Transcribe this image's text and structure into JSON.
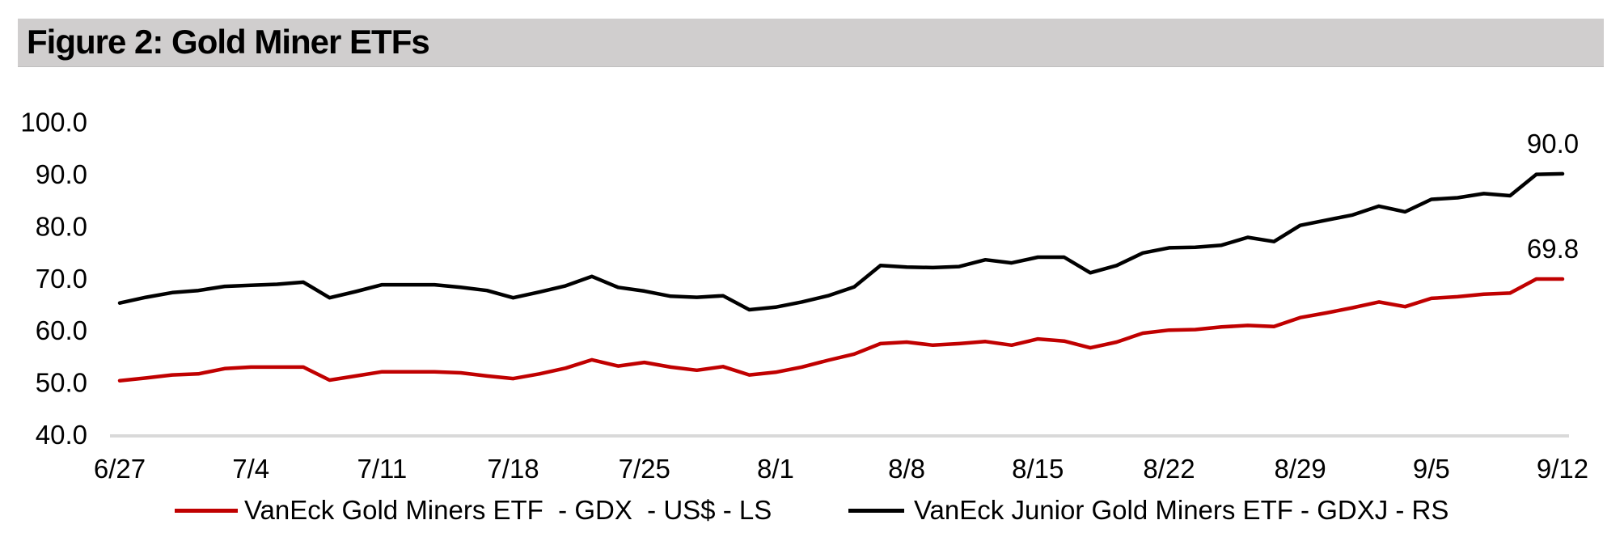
{
  "title": "Figure 2: Gold Miner ETFs",
  "colors": {
    "title_bar_bg": "#d0cece",
    "axis_line": "#d9d9d9",
    "gdx_line": "#C00000",
    "gdxj_line": "#000000",
    "background": "#ffffff"
  },
  "chart_data": {
    "type": "line",
    "title": "Figure 2: Gold Miner ETFs",
    "grid": false,
    "legend_position": "bottom",
    "ylim": [
      40,
      100
    ],
    "y_tick_labels": [
      "100.0",
      "90.0",
      "80.0",
      "70.0",
      "60.0",
      "50.0",
      "40.0"
    ],
    "x_tick_labels": [
      "6/27",
      "7/4",
      "7/11",
      "7/18",
      "7/25",
      "8/1",
      "8/8",
      "8/15",
      "8/22",
      "8/29",
      "9/5",
      "9/12"
    ],
    "points_per_label": 5,
    "series": [
      {
        "name": "VanEck Gold Miners ETF  - GDX  - US$ - LS",
        "color": "#C00000",
        "side": "LS",
        "end_label": "69.8",
        "values": [
          50.3,
          50.8,
          51.4,
          51.6,
          52.6,
          52.9,
          52.9,
          52.9,
          50.4,
          51.2,
          52.0,
          52.0,
          52.0,
          51.8,
          51.2,
          50.7,
          51.6,
          52.7,
          54.3,
          53.1,
          53.8,
          52.9,
          52.3,
          53.0,
          51.4,
          51.9,
          52.9,
          54.2,
          55.4,
          57.4,
          57.7,
          57.1,
          57.4,
          57.8,
          57.1,
          58.3,
          57.9,
          56.6,
          57.7,
          59.4,
          60.0,
          60.1,
          60.6,
          60.9,
          60.7,
          62.4,
          63.3,
          64.3,
          65.4,
          64.5,
          66.1,
          66.4,
          66.9,
          67.1,
          69.8,
          69.8
        ]
      },
      {
        "name": "VanEck Junior Gold Miners ETF - GDXJ - RS",
        "color": "#000000",
        "side": "RS",
        "end_label": "90.0",
        "values": [
          65.2,
          66.3,
          67.2,
          67.6,
          68.4,
          68.6,
          68.8,
          69.2,
          66.2,
          67.4,
          68.7,
          68.7,
          68.7,
          68.2,
          67.6,
          66.2,
          67.3,
          68.5,
          70.3,
          68.2,
          67.5,
          66.5,
          66.3,
          66.6,
          63.9,
          64.4,
          65.4,
          66.6,
          68.3,
          72.4,
          72.1,
          72.0,
          72.2,
          73.5,
          72.9,
          74.0,
          74.0,
          71.0,
          72.4,
          74.8,
          75.8,
          75.9,
          76.3,
          77.8,
          77.0,
          80.1,
          81.1,
          82.1,
          83.8,
          82.7,
          85.1,
          85.4,
          86.2,
          85.8,
          89.9,
          90.0
        ]
      }
    ]
  }
}
